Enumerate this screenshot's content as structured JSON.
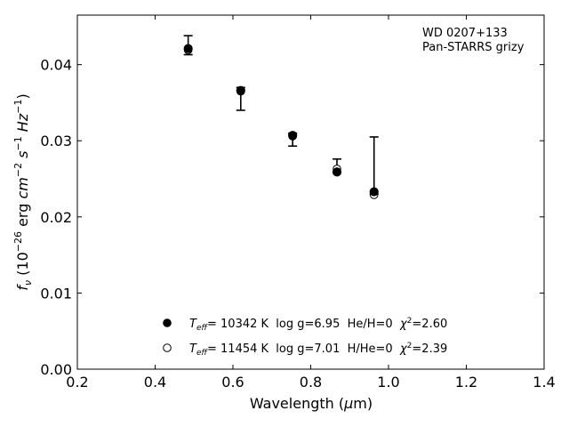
{
  "chart_data": {
    "type": "scatter",
    "xlabel_prefix": "Wavelength (",
    "xlabel_mu": "μ",
    "xlabel_suffix": "m)",
    "ylabel_f": "f",
    "ylabel_nu": "ν",
    "ylabel_open": " (10",
    "ylabel_exp1": "−26",
    "ylabel_mid1": " erg ",
    "ylabel_cm": "cm",
    "ylabel_exp2": "−2",
    "ylabel_s": " s",
    "ylabel_exp3": "−1",
    "ylabel_hz": " Hz",
    "ylabel_exp4": "−1",
    "ylabel_close": ")",
    "xlim": [
      0.2,
      1.4
    ],
    "ylim": [
      0.0,
      0.0465
    ],
    "xticks": [
      0.2,
      0.4,
      0.6,
      0.8,
      1.0,
      1.2,
      1.4
    ],
    "xtick_labels": [
      "0.2",
      "0.4",
      "0.6",
      "0.8",
      "1.0",
      "1.2",
      "1.4"
    ],
    "yticks": [
      0.0,
      0.01,
      0.02,
      0.03,
      0.04
    ],
    "ytick_labels": [
      "0.00",
      "0.01",
      "0.02",
      "0.03",
      "0.04"
    ],
    "annotations": [
      "WD 0207+133",
      "Pan-STARRS grizy"
    ],
    "observed": [
      {
        "x": 0.4849,
        "y_low": 0.0413,
        "y_high": 0.0438
      },
      {
        "x": 0.6201,
        "y_low": 0.034,
        "y_high": 0.037
      },
      {
        "x": 0.7535,
        "y_low": 0.0293,
        "y_high": 0.031
      },
      {
        "x": 0.8674,
        "y_low": 0.0258,
        "y_high": 0.0276
      },
      {
        "x": 0.9628,
        "y_low": 0.023,
        "y_high": 0.0305
      }
    ],
    "series": [
      {
        "marker": "filled",
        "x": [
          0.4849,
          0.6201,
          0.7535,
          0.8674,
          0.9628
        ],
        "y": [
          0.0421,
          0.0366,
          0.0307,
          0.0259,
          0.0233
        ]
      },
      {
        "marker": "open",
        "x": [
          0.4849,
          0.6201,
          0.7535,
          0.8674,
          0.9628
        ],
        "y": [
          0.0419,
          0.0365,
          0.0306,
          0.0263,
          0.0229
        ]
      }
    ],
    "legend": [
      {
        "marker": "filled",
        "T": "T",
        "eff": "eff",
        "text": "= 10342 K  log g=6.95  He/H=0  ",
        "chi": "χ",
        "two": "2",
        "chi_val": "=2.60"
      },
      {
        "marker": "open",
        "T": "T",
        "eff": "eff",
        "text": "= 11454 K  log g=7.01  H/He=0  ",
        "chi": "χ",
        "two": "2",
        "chi_val": "=2.39"
      }
    ],
    "legend_placement": "lower-center",
    "grid": false
  }
}
